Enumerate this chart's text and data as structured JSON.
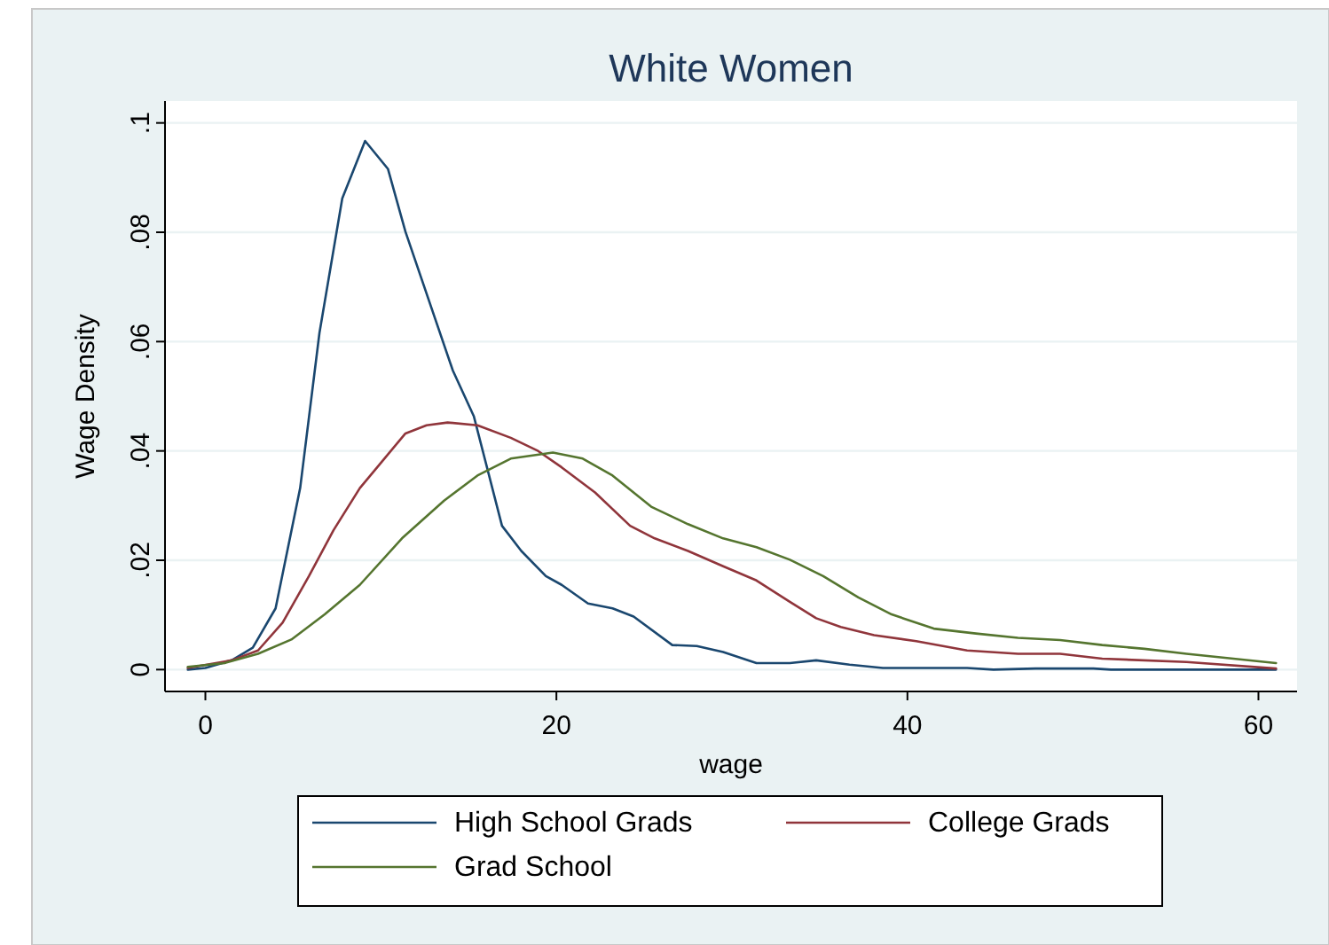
{
  "chart_data": {
    "type": "line",
    "title": "White Women",
    "xlabel": "wage",
    "ylabel": "Wage Density",
    "xlim": [
      -2.3,
      62.2
    ],
    "ylim": [
      -0.004,
      0.104
    ],
    "xticks": [
      0,
      20,
      40,
      60
    ],
    "yticks": [
      {
        "value": 0,
        "label": "0"
      },
      {
        "value": 0.02,
        "label": ".02"
      },
      {
        "value": 0.04,
        "label": ".04"
      },
      {
        "value": 0.06,
        "label": ".06"
      },
      {
        "value": 0.08,
        "label": ".08"
      },
      {
        "value": 0.1,
        "label": ".1"
      }
    ],
    "grid": "y",
    "legend": "bottom",
    "line_style": "solid",
    "marker": "none",
    "series": [
      {
        "name": "High School Grads",
        "color": "#1a476f",
        "x": [
          -1,
          0,
          1.5,
          2.7,
          4,
          5.4,
          6.5,
          7.8,
          9.1,
          10.4,
          11.4,
          14.1,
          15.3,
          16.9,
          18,
          19.4,
          20.3,
          21.8,
          23.2,
          24.4,
          26.6,
          28,
          29.5,
          31.4,
          33.3,
          34.8,
          36.7,
          38.6,
          43.4,
          44.9,
          47.3,
          50.6,
          51.6,
          61
        ],
        "values": [
          0,
          0.0003,
          0.0017,
          0.004,
          0.0112,
          0.0332,
          0.0616,
          0.0862,
          0.0967,
          0.0916,
          0.0801,
          0.0547,
          0.0463,
          0.0263,
          0.0217,
          0.0171,
          0.0155,
          0.0121,
          0.0112,
          0.0097,
          0.0045,
          0.0043,
          0.0032,
          0.0012,
          0.0012,
          0.0017,
          0.0009,
          0.0003,
          0.0003,
          0,
          0.0002,
          0.0002,
          0,
          0
        ]
      },
      {
        "name": "College Grads",
        "color": "#90353b",
        "x": [
          -1,
          1.5,
          3,
          4.4,
          5.9,
          7.3,
          8.8,
          10.2,
          11.4,
          12.6,
          13.8,
          15.5,
          17.4,
          18.9,
          20.3,
          22.2,
          24.2,
          25.6,
          27.5,
          29.5,
          31.4,
          33.3,
          34.8,
          36.2,
          38.1,
          40.5,
          43.4,
          46.3,
          48.7,
          51.1,
          55.9,
          61
        ],
        "values": [
          0.0003,
          0.0017,
          0.0035,
          0.0086,
          0.0171,
          0.0255,
          0.0332,
          0.0386,
          0.0432,
          0.0447,
          0.0452,
          0.0447,
          0.0424,
          0.0401,
          0.037,
          0.0324,
          0.0263,
          0.024,
          0.0217,
          0.0189,
          0.0163,
          0.0124,
          0.0094,
          0.0078,
          0.0063,
          0.0052,
          0.0035,
          0.0029,
          0.0029,
          0.002,
          0.0014,
          0.0002
        ]
      },
      {
        "name": "Grad School",
        "color": "#55752f",
        "x": [
          -1,
          1.1,
          3,
          4.9,
          6.8,
          8.8,
          11.2,
          13.6,
          15.5,
          17.4,
          19.8,
          21.5,
          23.2,
          25.4,
          27.5,
          29.5,
          31.4,
          33.3,
          35.2,
          37.2,
          39.1,
          41.5,
          43.9,
          46.3,
          48.7,
          51.1,
          53.5,
          55.9,
          61
        ],
        "values": [
          0.0005,
          0.0012,
          0.0029,
          0.0055,
          0.0101,
          0.0155,
          0.024,
          0.0309,
          0.0355,
          0.0386,
          0.0397,
          0.0386,
          0.0355,
          0.0298,
          0.0266,
          0.024,
          0.0224,
          0.0201,
          0.0171,
          0.0132,
          0.0101,
          0.0075,
          0.0066,
          0.0058,
          0.0054,
          0.0045,
          0.0038,
          0.0029,
          0.0012
        ]
      }
    ]
  }
}
